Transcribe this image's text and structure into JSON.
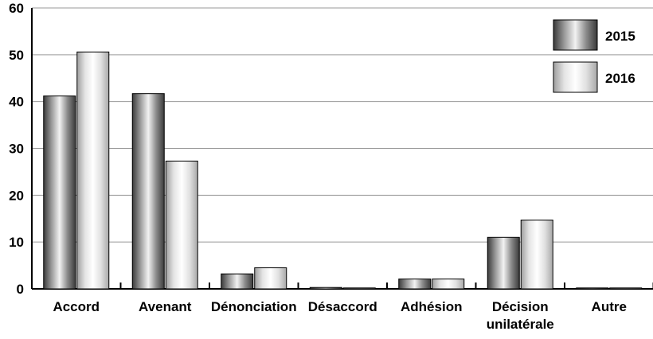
{
  "chart_data": {
    "type": "bar",
    "categories": [
      [
        "Accord"
      ],
      [
        "Avenant"
      ],
      [
        "Dénonciation"
      ],
      [
        "Désaccord"
      ],
      [
        "Adhésion"
      ],
      [
        "Décision",
        "unilatérale"
      ],
      [
        "Autre"
      ]
    ],
    "series": [
      {
        "name": "2015",
        "values": [
          41.2,
          41.7,
          3.2,
          0.3,
          2.1,
          11.0,
          0.2
        ]
      },
      {
        "name": "2016",
        "values": [
          50.6,
          27.3,
          4.5,
          0.2,
          2.1,
          14.7,
          0.2
        ]
      }
    ],
    "yticks": [
      "0",
      "10",
      "20",
      "30",
      "40",
      "50",
      "60"
    ],
    "ylim": [
      0,
      60
    ],
    "grid": true,
    "legend_position": "top-right",
    "series_style": [
      {
        "gradient": [
          "#3a3a3a",
          "#9a9a9a",
          "#f2f2f2",
          "#8a8a8a",
          "#3a3a3a"
        ]
      },
      {
        "gradient": [
          "#9e9e9e",
          "#e4e4e4",
          "#ffffff",
          "#e0e0e0",
          "#a8a8a8"
        ]
      }
    ]
  }
}
